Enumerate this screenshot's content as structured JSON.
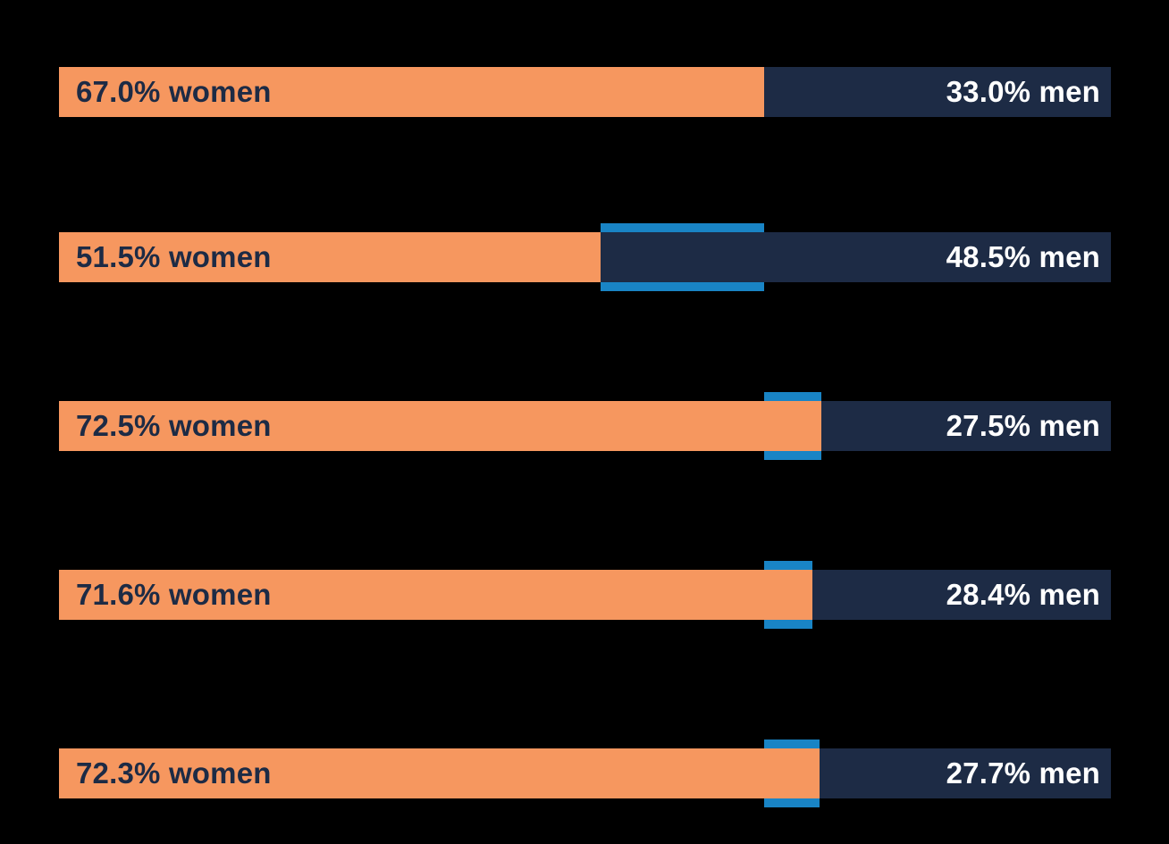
{
  "chart_data": {
    "type": "bar",
    "subtype": "horizontal-stacked-100pct",
    "orientation": "horizontal",
    "xlim": [
      0,
      100
    ],
    "grid": false,
    "legend": "none",
    "axis_labels": "none",
    "marker_reference_pct": 67.0,
    "series": [
      {
        "name": "women",
        "values": [
          67.0,
          51.5,
          72.5,
          71.6,
          72.3
        ]
      },
      {
        "name": "men",
        "values": [
          33.0,
          48.5,
          27.5,
          28.4,
          27.7
        ]
      }
    ],
    "rows": [
      {
        "women_pct": 67.0,
        "men_pct": 33.0,
        "women_label": "67.0% women",
        "men_label": "33.0% men",
        "highlight_marker": false
      },
      {
        "women_pct": 51.5,
        "men_pct": 48.5,
        "women_label": "51.5% women",
        "men_label": "48.5% men",
        "highlight_marker": true
      },
      {
        "women_pct": 72.5,
        "men_pct": 27.5,
        "women_label": "72.5% women",
        "men_label": "27.5% men",
        "highlight_marker": true
      },
      {
        "women_pct": 71.6,
        "men_pct": 28.4,
        "women_label": "71.6% women",
        "men_label": "28.4% men",
        "highlight_marker": true
      },
      {
        "women_pct": 72.3,
        "men_pct": 27.7,
        "women_label": "72.3% women",
        "men_label": "27.7% men",
        "highlight_marker": true
      }
    ]
  },
  "colors": {
    "background": "#000000",
    "women_bar": "#F6975F",
    "men_bar": "#1D2B45",
    "marker_blue": "#1984C5",
    "women_label_text": "#1D2B45",
    "men_label_text": "#FFFFFF"
  }
}
